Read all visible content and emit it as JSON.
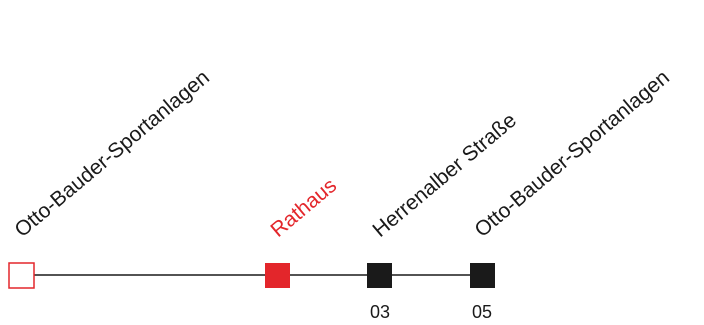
{
  "colors": {
    "line": "#1a1a1a",
    "stop_default": "#1a1a1a",
    "stop_current": "#e3262b",
    "stop_start_outline": "#e3262b",
    "text_default": "#1a1a1a",
    "text_current": "#e3262b"
  },
  "route": {
    "stops": [
      {
        "name": "Otto-Bauder-Sportanlagen",
        "time": "",
        "state": "start"
      },
      {
        "name": "Rathaus",
        "time": "",
        "state": "current"
      },
      {
        "name": "Herrenalber Straße",
        "time": "03",
        "state": "upcoming"
      },
      {
        "name": "Otto-Bauder-Sportanlagen",
        "time": "05",
        "state": "upcoming"
      }
    ]
  }
}
